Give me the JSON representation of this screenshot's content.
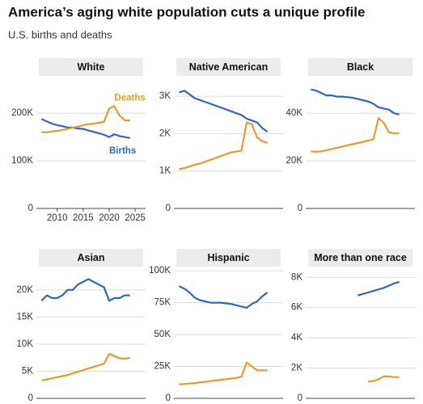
{
  "title": "America’s aging white population cuts a unique profile",
  "subtitle": "U.S. births and deaths",
  "chart_data": [
    {
      "type": "line",
      "title": "White",
      "xlim": [
        2006,
        2027
      ],
      "xticks": [
        2010,
        2015,
        2020,
        2025
      ],
      "ylim": [
        0,
        275000
      ],
      "yticks": [
        0,
        {
          "value": 100000,
          "label": "100K"
        },
        {
          "value": 200000,
          "label": "200K"
        }
      ],
      "x": [
        2007,
        2008,
        2009,
        2010,
        2011,
        2012,
        2013,
        2014,
        2015,
        2016,
        2017,
        2018,
        2019,
        2020,
        2021,
        2022,
        2023,
        2024
      ],
      "series": [
        {
          "name": "Births",
          "color": "#2f68b8",
          "values": [
            188000,
            183000,
            178000,
            175000,
            173000,
            170000,
            170000,
            168000,
            167000,
            164000,
            161000,
            158000,
            155000,
            150000,
            156000,
            152000,
            150000,
            148000
          ]
        },
        {
          "name": "Deaths",
          "color": "#e39a2f",
          "values": [
            160000,
            160000,
            162000,
            163000,
            165000,
            167000,
            170000,
            172000,
            175000,
            177000,
            178000,
            180000,
            182000,
            210000,
            215000,
            195000,
            185000,
            185000
          ]
        }
      ]
    },
    {
      "type": "line",
      "title": "Native American",
      "xlim": [
        2006,
        2027
      ],
      "ylim": [
        0,
        3500
      ],
      "yticks": [
        0,
        {
          "value": 1000,
          "label": "1K"
        },
        {
          "value": 2000,
          "label": "2K"
        },
        {
          "value": 3000,
          "label": "3K"
        }
      ],
      "x": [
        2007,
        2008,
        2009,
        2010,
        2011,
        2012,
        2013,
        2014,
        2015,
        2016,
        2017,
        2018,
        2019,
        2020,
        2021,
        2022,
        2023,
        2024
      ],
      "series": [
        {
          "color": "#2f68b8",
          "values": [
            3100,
            3150,
            3050,
            2950,
            2900,
            2850,
            2800,
            2750,
            2700,
            2650,
            2600,
            2550,
            2500,
            2400,
            2350,
            2300,
            2150,
            2050
          ]
        },
        {
          "color": "#e39a2f",
          "values": [
            1050,
            1080,
            1120,
            1170,
            1200,
            1250,
            1300,
            1350,
            1400,
            1450,
            1500,
            1520,
            1550,
            2300,
            2250,
            1900,
            1800,
            1750
          ]
        }
      ]
    },
    {
      "type": "line",
      "title": "Black",
      "xlim": [
        2006,
        2027
      ],
      "ylim": [
        0,
        55000
      ],
      "yticks": [
        0,
        {
          "value": 20000,
          "label": "20K"
        },
        {
          "value": 40000,
          "label": "40K"
        }
      ],
      "x": [
        2007,
        2008,
        2009,
        2010,
        2011,
        2012,
        2013,
        2014,
        2015,
        2016,
        2017,
        2018,
        2019,
        2020,
        2021,
        2022,
        2023,
        2024
      ],
      "series": [
        {
          "color": "#2f68b8",
          "values": [
            50000,
            49500,
            48500,
            47500,
            47500,
            47000,
            47000,
            46800,
            46500,
            46000,
            45500,
            45000,
            44000,
            42500,
            42000,
            41500,
            40000,
            39500
          ]
        },
        {
          "color": "#e39a2f",
          "values": [
            24000,
            23800,
            24000,
            24500,
            25000,
            25500,
            26000,
            26500,
            27000,
            27500,
            28000,
            28500,
            29000,
            38000,
            36000,
            32000,
            31500,
            31500
          ]
        }
      ]
    },
    {
      "type": "line",
      "title": "Asian",
      "xlim": [
        2006,
        2027
      ],
      "ylim": [
        0,
        24000
      ],
      "yticks": [
        0,
        {
          "value": 5000,
          "label": "5K"
        },
        {
          "value": 10000,
          "label": "10K"
        },
        {
          "value": 15000,
          "label": "15K"
        },
        {
          "value": 20000,
          "label": "20K"
        }
      ],
      "x": [
        2007,
        2008,
        2009,
        2010,
        2011,
        2012,
        2013,
        2014,
        2015,
        2016,
        2017,
        2018,
        2019,
        2020,
        2021,
        2022,
        2023,
        2024
      ],
      "series": [
        {
          "color": "#2f68b8",
          "values": [
            18000,
            19000,
            18500,
            18500,
            19000,
            20000,
            20000,
            21000,
            21500,
            22000,
            21500,
            21000,
            20500,
            18000,
            18500,
            18500,
            19000,
            19000
          ]
        },
        {
          "color": "#e39a2f",
          "values": [
            3300,
            3500,
            3700,
            3900,
            4100,
            4300,
            4600,
            4900,
            5200,
            5500,
            5800,
            6100,
            6400,
            8200,
            7800,
            7400,
            7300,
            7500
          ]
        }
      ]
    },
    {
      "type": "line",
      "title": "Hispanic",
      "xlim": [
        2006,
        2027
      ],
      "ylim": [
        0,
        102000
      ],
      "yticks": [
        0,
        {
          "value": 25000,
          "label": "25K"
        },
        {
          "value": 50000,
          "label": "50K"
        },
        {
          "value": 75000,
          "label": "75K"
        },
        {
          "value": 100000,
          "label": "100K"
        }
      ],
      "x": [
        2007,
        2008,
        2009,
        2010,
        2011,
        2012,
        2013,
        2014,
        2015,
        2016,
        2017,
        2018,
        2019,
        2020,
        2021,
        2022,
        2023,
        2024
      ],
      "series": [
        {
          "color": "#2f68b8",
          "values": [
            88000,
            86000,
            83000,
            79000,
            77000,
            76000,
            75000,
            75000,
            75000,
            74500,
            74000,
            73000,
            72000,
            71000,
            74000,
            76000,
            80000,
            83000
          ]
        },
        {
          "color": "#e39a2f",
          "values": [
            11000,
            11200,
            11600,
            12000,
            12500,
            13000,
            13500,
            14000,
            14500,
            15000,
            15500,
            16000,
            17000,
            28000,
            25000,
            22000,
            22000,
            22000
          ]
        }
      ]
    },
    {
      "type": "line",
      "title": "More than one race",
      "xlim": [
        2006,
        2027
      ],
      "ylim": [
        0,
        8600
      ],
      "yticks": [
        0,
        {
          "value": 2000,
          "label": "2K"
        },
        {
          "value": 4000,
          "label": "4K"
        },
        {
          "value": 6000,
          "label": "6K"
        },
        {
          "value": 8000,
          "label": "8K"
        }
      ],
      "x": [
        2007,
        2008,
        2009,
        2010,
        2011,
        2012,
        2013,
        2014,
        2015,
        2016,
        2017,
        2018,
        2019,
        2020,
        2021,
        2022,
        2023,
        2024
      ],
      "series": [
        {
          "color": "#2f68b8",
          "values": [
            null,
            null,
            null,
            null,
            null,
            null,
            null,
            null,
            null,
            6800,
            6900,
            7000,
            7100,
            7200,
            7300,
            7450,
            7600,
            7700
          ]
        },
        {
          "color": "#e39a2f",
          "values": [
            null,
            null,
            null,
            null,
            null,
            null,
            null,
            null,
            null,
            null,
            null,
            1100,
            1150,
            1250,
            1450,
            1450,
            1400,
            1400
          ]
        }
      ]
    }
  ]
}
